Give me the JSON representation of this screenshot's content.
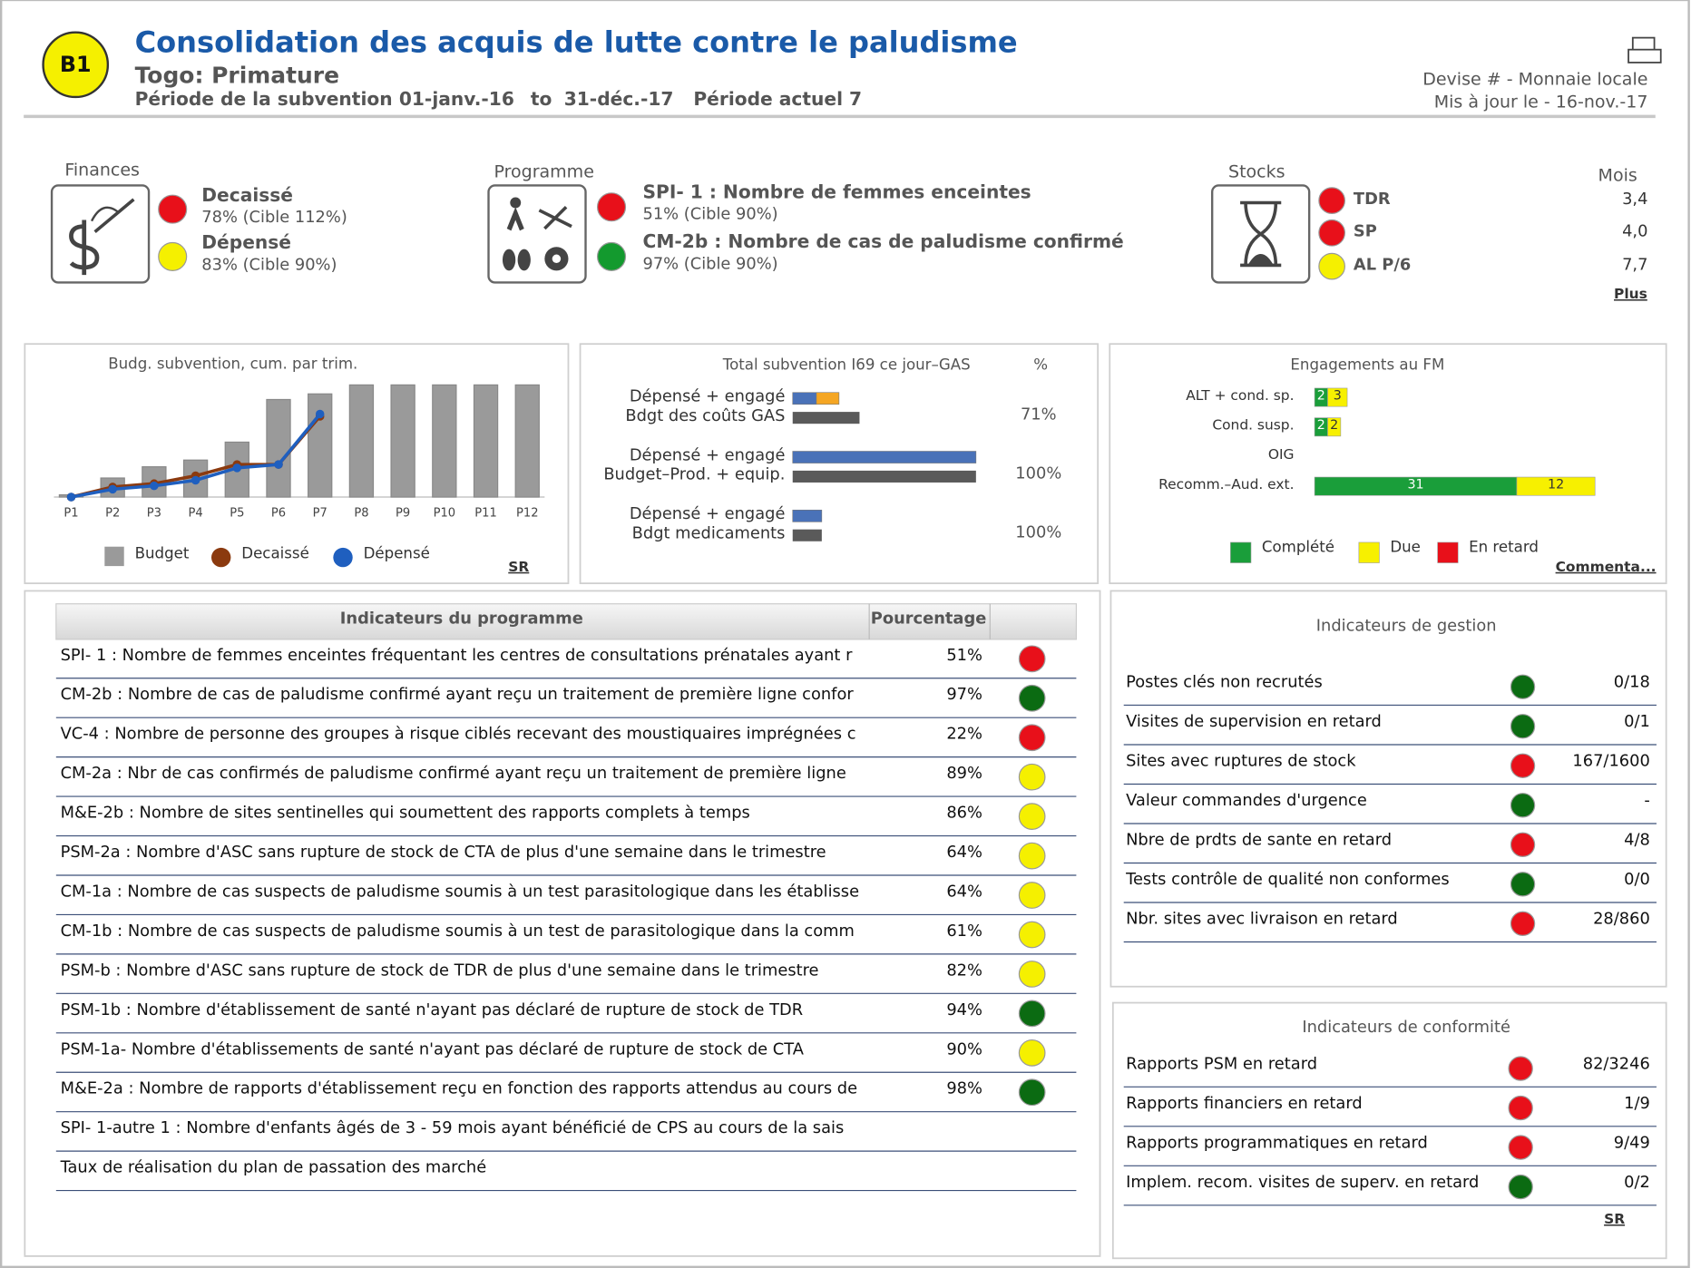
{
  "header": {
    "badge": "B1",
    "title": "Consolidation des acquis de lutte contre le paludisme",
    "subtitle": "Togo: Primature",
    "period_label": "Période de la subvention",
    "period_start": "01-janv.-16",
    "period_to": "to",
    "period_end": "31-déc.-17",
    "current_period": "Période actuel 7",
    "currency": "Devise # - Monnaie locale",
    "updated": "Mis à jour le   - 16-nov.-17"
  },
  "finances": {
    "label": "Finances",
    "items": [
      {
        "name": "Decaissé",
        "detail": "78% (Cible 112%)",
        "color": "#e8101a"
      },
      {
        "name": "Dépensé",
        "detail": "83% (Cible 90%)",
        "color": "#f5f000"
      }
    ]
  },
  "programme": {
    "label": "Programme",
    "items": [
      {
        "name": "SPI- 1 : Nombre de femmes enceintes",
        "detail": "51% (Cible 90%)",
        "color": "#e8101a"
      },
      {
        "name": "CM-2b : Nombre de cas de paludisme confirmé",
        "detail": "97% (Cible 90%)",
        "color": "#139a2e"
      }
    ]
  },
  "stocks": {
    "label": "Stocks",
    "unit": "Mois",
    "link": "Plus",
    "items": [
      {
        "name": "TDR",
        "value": "3,4",
        "color": "#e8101a"
      },
      {
        "name": "SP",
        "value": "4,0",
        "color": "#e8101a"
      },
      {
        "name": "AL P/6",
        "value": "7,7",
        "color": "#f5f000"
      }
    ]
  },
  "budget_chart": {
    "title": "Budg. subvention, cum. par trim.",
    "categories": [
      "P1",
      "P2",
      "P3",
      "P4",
      "P5",
      "P6",
      "P7",
      "P8",
      "P9",
      "P10",
      "P11",
      "P12"
    ],
    "ylim": [
      0,
      100
    ],
    "series": [
      {
        "name": "Budget",
        "type": "bar",
        "color": "#9a9a9a",
        "values": [
          2,
          17,
          27,
          33,
          49,
          87,
          92,
          100,
          100,
          100,
          100,
          100
        ]
      },
      {
        "name": "Decaissé",
        "type": "line",
        "color": "#8b3a0f",
        "values": [
          0,
          9,
          12,
          19,
          29,
          29,
          72,
          null,
          null,
          null,
          null,
          null
        ]
      },
      {
        "name": "Dépensé",
        "type": "line",
        "color": "#1f5fbf",
        "values": [
          0,
          7,
          10,
          15,
          26,
          29,
          74,
          null,
          null,
          null,
          null,
          null
        ]
      }
    ],
    "link": "SR"
  },
  "gas_chart": {
    "title": "Total subvention I69 ce jour–GAS",
    "pct_header": "%",
    "xlim": [
      0,
      170
    ],
    "spent_colors": [
      "#4a72b8",
      "#f5a623"
    ],
    "budget_color": "#5a5a5a",
    "groups": [
      {
        "spent_label": "Dépensé + engagé",
        "budget_label": "Bdgt des coûts GAS",
        "spent": [
          22,
          21
        ],
        "budget": 62,
        "pct": "71%"
      },
      {
        "spent_label": "Dépensé + engagé",
        "budget_label": "Budget–Prod. + equip.",
        "spent": [
          170
        ],
        "budget": 170,
        "pct": "100%"
      },
      {
        "spent_label": "Dépensé + engagé",
        "budget_label": "Bdgt medicaments",
        "spent": [
          27
        ],
        "budget": 27,
        "pct": "100%"
      }
    ]
  },
  "engagements": {
    "title": "Engagements au FM",
    "xlim": [
      0,
      43
    ],
    "categories": [
      "ALT + cond. sp.",
      "Cond. susp.",
      "OIG",
      "Recomm.–Aud. ext."
    ],
    "series": [
      {
        "name": "Complété",
        "color": "#1a9e3a",
        "label_color": "#ffffff",
        "values": [
          2,
          2,
          0,
          31
        ]
      },
      {
        "name": "Due",
        "color": "#f7f000",
        "label_color": "#333333",
        "values": [
          3,
          2,
          0,
          12
        ]
      },
      {
        "name": "En retard",
        "color": "#e8101a",
        "label_color": "#ffffff",
        "values": [
          0,
          0,
          0,
          0
        ]
      }
    ],
    "link": "Commenta..."
  },
  "program_table": {
    "header": [
      "Indicateurs du programme",
      "Pourcentage"
    ],
    "rows": [
      {
        "text": "SPI- 1 : Nombre de femmes enceintes fréquentant les centres de consultations prénatales ayant r",
        "pct": "51%",
        "color": "#e8101a"
      },
      {
        "text": "CM-2b : Nombre de cas de paludisme confirmé ayant reçu un traitement de première ligne confor",
        "pct": "97%",
        "color": "#0b6b12"
      },
      {
        "text": "VC-4 : Nombre de personne des groupes à risque ciblés recevant des moustiquaires imprégnées c",
        "pct": "22%",
        "color": "#e8101a"
      },
      {
        "text": "CM-2a : Nbr de cas confirmés de paludisme confirmé ayant reçu un traitement de première ligne",
        "pct": "89%",
        "color": "#f5f000"
      },
      {
        "text": "M&E-2b : Nombre de sites sentinelles qui soumettent des rapports complets à temps",
        "pct": "86%",
        "color": "#f5f000"
      },
      {
        "text": "PSM-2a : Nombre d'ASC sans rupture de stock de CTA de plus d'une semaine dans le trimestre",
        "pct": "64%",
        "color": "#f5f000"
      },
      {
        "text": "CM-1a : Nombre de cas suspects de paludisme soumis à un test parasitologique dans les établisse",
        "pct": "64%",
        "color": "#f5f000"
      },
      {
        "text": "CM-1b : Nombre de cas suspects de paludisme soumis à un test de parasitologique dans la comm",
        "pct": "61%",
        "color": "#f5f000"
      },
      {
        "text": "PSM-b : Nombre d'ASC sans rupture de stock de TDR de plus d'une semaine dans le trimestre",
        "pct": "82%",
        "color": "#f5f000"
      },
      {
        "text": "PSM-1b : Nombre d'établissement de santé n'ayant pas déclaré de rupture de stock de TDR",
        "pct": "94%",
        "color": "#0b6b12"
      },
      {
        "text": "PSM-1a- Nombre d'établissements de santé n'ayant pas déclaré de rupture de stock de CTA",
        "pct": "90%",
        "color": "#f5f000"
      },
      {
        "text": "M&E-2a : Nombre de rapports d'établissement reçu en fonction des rapports attendus au cours de",
        "pct": "98%",
        "color": "#0b6b12"
      },
      {
        "text": "SPI- 1-autre 1 : Nombre d'enfants âgés de 3 - 59 mois ayant bénéficié de CPS au cours de la sais"
      },
      {
        "text": "Taux de réalisation du plan de passation des marché"
      }
    ]
  },
  "gestion": {
    "title": "Indicateurs de gestion",
    "rows": [
      {
        "label": "Postes clés non recrutés",
        "color": "#0b6b12",
        "value": "0/18"
      },
      {
        "label": "Visites de supervision en retard",
        "color": "#0b6b12",
        "value": "0/1"
      },
      {
        "label": "Sites avec ruptures de stock",
        "color": "#e8101a",
        "value": "167/1600"
      },
      {
        "label": "Valeur commandes d'urgence",
        "color": "#0b6b12",
        "value": "-"
      },
      {
        "label": "Nbre de prdts de sante en retard",
        "color": "#e8101a",
        "value": "4/8"
      },
      {
        "label": "Tests contrôle de qualité non conformes",
        "color": "#0b6b12",
        "value": "0/0"
      },
      {
        "label": "Nbr. sites avec livraison en retard",
        "color": "#e8101a",
        "value": "28/860"
      }
    ]
  },
  "conformite": {
    "title": "Indicateurs de conformité",
    "link": "SR",
    "rows": [
      {
        "label": "Rapports PSM en retard",
        "color": "#e8101a",
        "value": "82/3246"
      },
      {
        "label": "Rapports financiers en retard",
        "color": "#e8101a",
        "value": "1/9"
      },
      {
        "label": "Rapports programmatiques en retard",
        "color": "#e8101a",
        "value": "9/49"
      },
      {
        "label": "Implem. recom. visites de superv. en retard",
        "color": "#0b6b12",
        "value": "0/2"
      }
    ]
  }
}
